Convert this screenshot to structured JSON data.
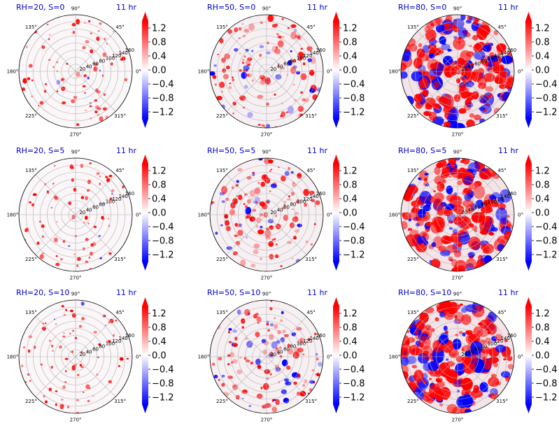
{
  "colors": {
    "positive": "#ff0000",
    "negative": "#0000ff",
    "zero": "#ffffff",
    "title": "#0000cc",
    "grid": "#b0b0b0",
    "spine": "#000000"
  },
  "chart_data": [
    {
      "type": "heatmap",
      "projection": "polar",
      "title_left": "RH=20, S=0",
      "title_right": "11 hr",
      "rh": 20,
      "s": 0,
      "radial_ticks": [
        20,
        40,
        60,
        80,
        100,
        120,
        140,
        160
      ],
      "angular_ticks": [
        "0°",
        "45°",
        "90°",
        "135°",
        "180°",
        "225°",
        "270°",
        "315°"
      ],
      "colorbar": {
        "ticks": [
          "1.2",
          "0.8",
          "0.4",
          "0.0",
          "−0.4",
          "−0.8",
          "−1.2"
        ],
        "range": [
          -1.4,
          1.4
        ],
        "cmap": "bwr"
      }
    },
    {
      "type": "heatmap",
      "projection": "polar",
      "title_left": "RH=50, S=0",
      "title_right": "11 hr",
      "rh": 50,
      "s": 0,
      "radial_ticks": [
        20,
        40,
        60,
        80,
        100,
        120,
        140,
        160
      ],
      "angular_ticks": [
        "0°",
        "45°",
        "90°",
        "135°",
        "180°",
        "225°",
        "270°",
        "315°"
      ],
      "colorbar": {
        "ticks": [
          "1.2",
          "0.8",
          "0.4",
          "0.0",
          "−0.4",
          "−0.8",
          "−1.2"
        ],
        "range": [
          -1.4,
          1.4
        ],
        "cmap": "bwr"
      }
    },
    {
      "type": "heatmap",
      "projection": "polar",
      "title_left": "RH=80, S=0",
      "title_right": "11 hr",
      "rh": 80,
      "s": 0,
      "radial_ticks": [
        20,
        40,
        60,
        80,
        100,
        120,
        140,
        160
      ],
      "angular_ticks": [
        "0°",
        "45°",
        "90°",
        "135°",
        "180°",
        "225°",
        "270°",
        "315°"
      ],
      "colorbar": {
        "ticks": [
          "1.2",
          "0.8",
          "0.4",
          "0.0",
          "−0.4",
          "−0.8",
          "−1.2"
        ],
        "range": [
          -1.4,
          1.4
        ],
        "cmap": "bwr"
      }
    },
    {
      "type": "heatmap",
      "projection": "polar",
      "title_left": "RH=20, S=5",
      "title_right": "11 hr",
      "rh": 20,
      "s": 5,
      "radial_ticks": [
        20,
        40,
        60,
        80,
        100,
        120,
        140,
        160
      ],
      "angular_ticks": [
        "0°",
        "45°",
        "90°",
        "135°",
        "180°",
        "225°",
        "270°",
        "315°"
      ],
      "colorbar": {
        "ticks": [
          "1.2",
          "0.8",
          "0.4",
          "0.0",
          "−0.4",
          "−0.8",
          "−1.2"
        ],
        "range": [
          -1.4,
          1.4
        ],
        "cmap": "bwr"
      }
    },
    {
      "type": "heatmap",
      "projection": "polar",
      "title_left": "RH=50, S=5",
      "title_right": "11 hr",
      "rh": 50,
      "s": 5,
      "radial_ticks": [
        20,
        40,
        60,
        80,
        100,
        120,
        140,
        160
      ],
      "angular_ticks": [
        "0°",
        "45°",
        "90°",
        "135°",
        "180°",
        "225°",
        "270°",
        "315°"
      ],
      "colorbar": {
        "ticks": [
          "1.2",
          "0.8",
          "0.4",
          "0.0",
          "−0.4",
          "−0.8",
          "−1.2"
        ],
        "range": [
          -1.4,
          1.4
        ],
        "cmap": "bwr"
      }
    },
    {
      "type": "heatmap",
      "projection": "polar",
      "title_left": "RH=80, S=5",
      "title_right": "11 hr",
      "rh": 80,
      "s": 5,
      "radial_ticks": [
        20,
        40,
        60,
        80,
        100,
        120,
        140,
        160
      ],
      "angular_ticks": [
        "0°",
        "45°",
        "90°",
        "135°",
        "180°",
        "225°",
        "270°",
        "315°"
      ],
      "colorbar": {
        "ticks": [
          "1.2",
          "0.8",
          "0.4",
          "0.0",
          "−0.4",
          "−0.8",
          "−1.2"
        ],
        "range": [
          -1.4,
          1.4
        ],
        "cmap": "bwr"
      }
    },
    {
      "type": "heatmap",
      "projection": "polar",
      "title_left": "RH=20, S=10",
      "title_right": "11 hr",
      "rh": 20,
      "s": 10,
      "radial_ticks": [
        20,
        40,
        60,
        80,
        100,
        120,
        140,
        160
      ],
      "angular_ticks": [
        "0°",
        "45°",
        "90°",
        "135°",
        "180°",
        "225°",
        "270°",
        "315°"
      ],
      "colorbar": {
        "ticks": [
          "1.2",
          "0.8",
          "0.4",
          "0.0",
          "−0.4",
          "−0.8",
          "−1.2"
        ],
        "range": [
          -1.4,
          1.4
        ],
        "cmap": "bwr"
      }
    },
    {
      "type": "heatmap",
      "projection": "polar",
      "title_left": "RH=50, S=10",
      "title_right": "11 hr",
      "rh": 50,
      "s": 10,
      "radial_ticks": [
        20,
        40,
        60,
        80,
        100,
        120,
        140,
        160
      ],
      "angular_ticks": [
        "0°",
        "45°",
        "90°",
        "135°",
        "180°",
        "225°",
        "270°",
        "315°"
      ],
      "colorbar": {
        "ticks": [
          "1.2",
          "0.8",
          "0.4",
          "0.0",
          "−0.4",
          "−0.8",
          "−1.2"
        ],
        "range": [
          -1.4,
          1.4
        ],
        "cmap": "bwr"
      }
    },
    {
      "type": "heatmap",
      "projection": "polar",
      "title_left": "RH=80, S=10",
      "title_right": "11 hr",
      "rh": 80,
      "s": 10,
      "radial_ticks": [
        20,
        40,
        60,
        80,
        100,
        120,
        140,
        160
      ],
      "angular_ticks": [
        "0°",
        "45°",
        "90°",
        "135°",
        "180°",
        "225°",
        "270°",
        "315°"
      ],
      "colorbar": {
        "ticks": [
          "1.2",
          "0.8",
          "0.4",
          "0.0",
          "−0.4",
          "−0.8",
          "−1.2"
        ],
        "range": [
          -1.4,
          1.4
        ],
        "cmap": "bwr"
      }
    }
  ]
}
